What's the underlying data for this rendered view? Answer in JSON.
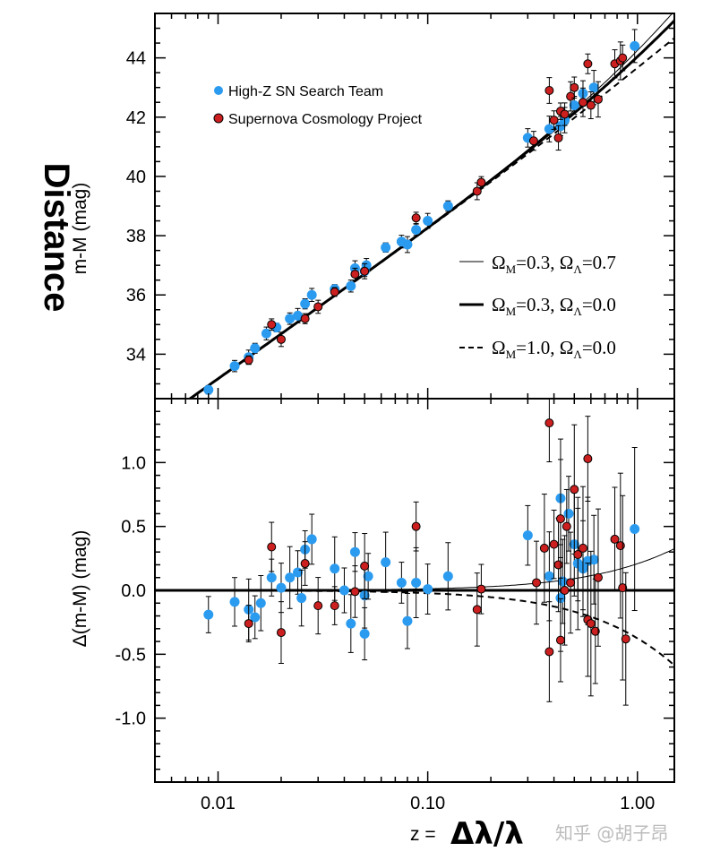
{
  "figure": {
    "side_title": "Distance",
    "xlabel_prefix": "z =",
    "xlabel_symbol": "Δλ/λ",
    "watermark": "知乎 @胡子昂"
  },
  "legend": {
    "items": [
      {
        "label": "High-Z SN Search Team",
        "color": "#2b9bf0"
      },
      {
        "label": "Supernova Cosmology Project",
        "color": "#cc1f1f"
      }
    ]
  },
  "models": [
    {
      "om": "0.3",
      "ol": "0.7",
      "style": "thin-solid",
      "offset_at_z1": 0.25
    },
    {
      "om": "0.3",
      "ol": "0.0",
      "style": "thick-solid",
      "offset_at_z1": 0.0
    },
    {
      "om": "1.0",
      "ol": "0.0",
      "style": "dashed",
      "offset_at_z1": -0.45
    }
  ],
  "chart_data": [
    {
      "type": "scatter",
      "panel": "top",
      "ylabel": "m-M (mag)",
      "xscale": "log",
      "xlim": [
        0.005,
        1.5
      ],
      "ylim": [
        32.5,
        45.5
      ],
      "yticks": [
        34,
        36,
        38,
        40,
        42,
        44
      ],
      "series": [
        {
          "name": "High-Z SN Search Team",
          "color": "#2b9bf0",
          "points": [
            [
              0.009,
              32.8
            ],
            [
              0.012,
              33.6
            ],
            [
              0.014,
              33.9
            ],
            [
              0.015,
              34.2
            ],
            [
              0.017,
              34.7
            ],
            [
              0.019,
              34.9
            ],
            [
              0.022,
              35.2
            ],
            [
              0.024,
              35.3
            ],
            [
              0.026,
              35.7
            ],
            [
              0.028,
              36.0
            ],
            [
              0.036,
              36.2
            ],
            [
              0.043,
              36.3
            ],
            [
              0.045,
              36.9
            ],
            [
              0.05,
              36.8
            ],
            [
              0.051,
              37.0
            ],
            [
              0.063,
              37.6
            ],
            [
              0.075,
              37.8
            ],
            [
              0.08,
              37.7
            ],
            [
              0.088,
              38.2
            ],
            [
              0.1,
              38.5
            ],
            [
              0.125,
              39.0
            ],
            [
              0.3,
              41.3
            ],
            [
              0.38,
              41.6
            ],
            [
              0.43,
              41.7
            ],
            [
              0.45,
              41.9
            ],
            [
              0.5,
              42.4
            ],
            [
              0.55,
              42.8
            ],
            [
              0.62,
              43.0
            ],
            [
              0.97,
              44.4
            ]
          ]
        },
        {
          "name": "Supernova Cosmology Project",
          "color": "#cc1f1f",
          "points": [
            [
              0.014,
              33.8
            ],
            [
              0.018,
              35.0
            ],
            [
              0.02,
              34.5
            ],
            [
              0.026,
              35.2
            ],
            [
              0.03,
              35.6
            ],
            [
              0.036,
              36.1
            ],
            [
              0.045,
              36.7
            ],
            [
              0.05,
              36.8
            ],
            [
              0.088,
              38.6
            ],
            [
              0.172,
              39.5
            ],
            [
              0.18,
              39.8
            ],
            [
              0.32,
              41.2
            ],
            [
              0.38,
              42.9
            ],
            [
              0.4,
              41.9
            ],
            [
              0.42,
              41.3
            ],
            [
              0.43,
              42.2
            ],
            [
              0.45,
              42.1
            ],
            [
              0.48,
              42.7
            ],
            [
              0.5,
              43.0
            ],
            [
              0.55,
              42.5
            ],
            [
              0.58,
              43.8
            ],
            [
              0.6,
              42.4
            ],
            [
              0.65,
              42.6
            ],
            [
              0.78,
              43.8
            ],
            [
              0.83,
              43.9
            ],
            [
              0.85,
              44.0
            ]
          ]
        }
      ]
    },
    {
      "type": "scatter",
      "panel": "bottom",
      "ylabel": "Δ(m-M) (mag)",
      "xscale": "log",
      "xlim": [
        0.005,
        1.5
      ],
      "ylim": [
        -1.5,
        1.5
      ],
      "yticks": [
        -1.0,
        -0.5,
        0.0,
        0.5,
        1.0
      ],
      "xticks": [
        0.01,
        0.1,
        1.0
      ],
      "xtick_labels": [
        "0.01",
        "0.10",
        "1.00"
      ],
      "series": [
        {
          "name": "High-Z SN Search Team",
          "color": "#2b9bf0",
          "points": [
            [
              0.009,
              -0.19
            ],
            [
              0.012,
              -0.09
            ],
            [
              0.014,
              -0.15
            ],
            [
              0.015,
              -0.21
            ],
            [
              0.016,
              -0.1
            ],
            [
              0.018,
              0.1
            ],
            [
              0.02,
              0.02
            ],
            [
              0.022,
              0.1
            ],
            [
              0.024,
              0.14
            ],
            [
              0.025,
              -0.06
            ],
            [
              0.026,
              0.32
            ],
            [
              0.028,
              0.4
            ],
            [
              0.036,
              0.17
            ],
            [
              0.04,
              0.0
            ],
            [
              0.043,
              -0.26
            ],
            [
              0.045,
              0.3
            ],
            [
              0.05,
              -0.34
            ],
            [
              0.05,
              -0.04
            ],
            [
              0.052,
              0.11
            ],
            [
              0.063,
              0.22
            ],
            [
              0.075,
              0.06
            ],
            [
              0.08,
              -0.24
            ],
            [
              0.088,
              0.06
            ],
            [
              0.1,
              0.01
            ],
            [
              0.125,
              0.11
            ],
            [
              0.3,
              0.43
            ],
            [
              0.38,
              0.11
            ],
            [
              0.43,
              0.72
            ],
            [
              0.44,
              0.07
            ],
            [
              0.43,
              -0.06
            ],
            [
              0.47,
              0.6
            ],
            [
              0.5,
              0.36
            ],
            [
              0.52,
              0.21
            ],
            [
              0.55,
              0.17
            ],
            [
              0.58,
              0.23
            ],
            [
              0.62,
              0.24
            ],
            [
              0.97,
              0.48
            ]
          ]
        },
        {
          "name": "Supernova Cosmology Project",
          "color": "#cc1f1f",
          "points": [
            [
              0.014,
              -0.26
            ],
            [
              0.018,
              0.34
            ],
            [
              0.02,
              -0.33
            ],
            [
              0.026,
              0.21
            ],
            [
              0.03,
              -0.12
            ],
            [
              0.036,
              -0.12
            ],
            [
              0.045,
              -0.01
            ],
            [
              0.05,
              0.19
            ],
            [
              0.088,
              0.5
            ],
            [
              0.172,
              -0.15
            ],
            [
              0.18,
              0.01
            ],
            [
              0.33,
              0.06
            ],
            [
              0.36,
              0.33
            ],
            [
              0.38,
              1.31
            ],
            [
              0.38,
              -0.48
            ],
            [
              0.4,
              0.36
            ],
            [
              0.42,
              0.2
            ],
            [
              0.43,
              0.56
            ],
            [
              0.43,
              -0.39
            ],
            [
              0.45,
              0.0
            ],
            [
              0.46,
              0.5
            ],
            [
              0.48,
              0.06
            ],
            [
              0.5,
              0.79
            ],
            [
              0.52,
              0.28
            ],
            [
              0.55,
              0.33
            ],
            [
              0.58,
              1.03
            ],
            [
              0.58,
              -0.23
            ],
            [
              0.6,
              -0.26
            ],
            [
              0.63,
              -0.32
            ],
            [
              0.65,
              0.1
            ],
            [
              0.78,
              0.4
            ],
            [
              0.83,
              0.35
            ],
            [
              0.85,
              0.02
            ],
            [
              0.88,
              -0.38
            ]
          ]
        }
      ]
    }
  ]
}
